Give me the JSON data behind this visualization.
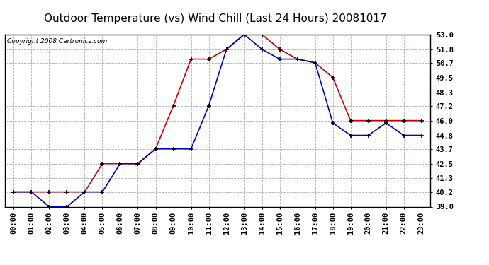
{
  "title": "Outdoor Temperature (vs) Wind Chill (Last 24 Hours) 20081017",
  "copyright": "Copyright 2008 Cartronics.com",
  "hours": [
    "00:00",
    "01:00",
    "02:00",
    "03:00",
    "04:00",
    "05:00",
    "06:00",
    "07:00",
    "08:00",
    "09:00",
    "10:00",
    "11:00",
    "12:00",
    "13:00",
    "14:00",
    "15:00",
    "16:00",
    "17:00",
    "18:00",
    "19:00",
    "20:00",
    "21:00",
    "22:00",
    "23:00"
  ],
  "outdoor_temp": [
    40.2,
    40.2,
    40.2,
    40.2,
    40.2,
    42.5,
    42.5,
    42.5,
    43.7,
    47.2,
    51.0,
    51.0,
    51.8,
    53.0,
    53.0,
    51.8,
    51.0,
    50.7,
    49.5,
    46.0,
    46.0,
    46.0,
    46.0,
    46.0
  ],
  "wind_chill": [
    40.2,
    40.2,
    39.0,
    39.0,
    40.2,
    40.2,
    42.5,
    42.5,
    43.7,
    43.7,
    43.7,
    47.2,
    51.8,
    53.0,
    51.8,
    51.0,
    51.0,
    50.7,
    45.8,
    44.8,
    44.8,
    45.8,
    44.8,
    44.8
  ],
  "temp_color": "#cc0000",
  "wind_chill_color": "#0000cc",
  "bg_color": "#ffffff",
  "plot_bg_color": "#ffffff",
  "grid_color": "#aaaacc",
  "ylim": [
    39.0,
    53.0
  ],
  "yticks": [
    39.0,
    40.2,
    41.3,
    42.5,
    43.7,
    44.8,
    46.0,
    47.2,
    48.3,
    49.5,
    50.7,
    51.8,
    53.0
  ],
  "title_fontsize": 11,
  "copyright_fontsize": 6.5,
  "tick_fontsize": 7.5
}
